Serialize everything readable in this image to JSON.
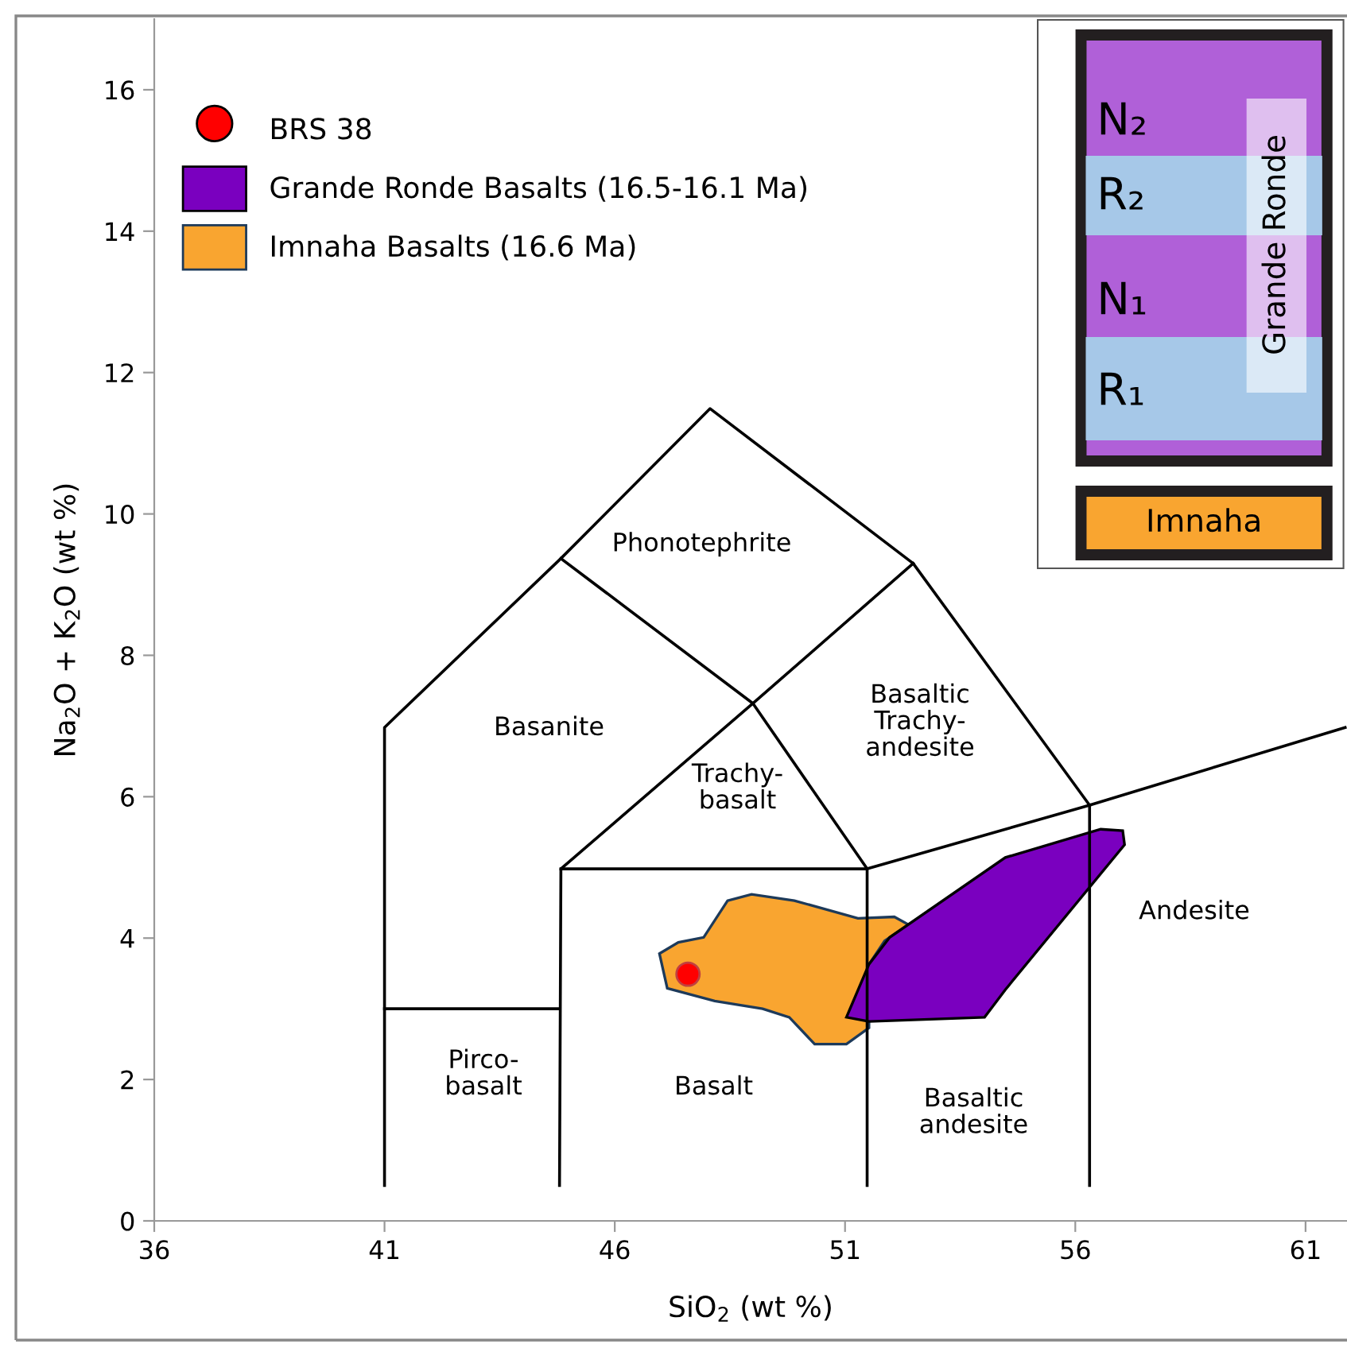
{
  "chart_data": [
    {
      "type": "scatter",
      "xlabel": "SiO$_{2}$ (wt %)",
      "ylabel": "Na$_{2}$O + K$_{2}$O (wt %)",
      "xlim": [
        36,
        61.9
      ],
      "ylim": [
        0,
        17
      ],
      "xticks": [
        36,
        41,
        46,
        51,
        56,
        61
      ],
      "yticks": [
        0,
        2,
        4,
        6,
        8,
        10,
        12,
        14,
        16
      ],
      "grid": false,
      "legend": "top left",
      "series": [
        {
          "name": "Grande Ronde Basalts (16.5-16.1 Ma)",
          "type": "area",
          "color": "#7a00bf",
          "x": [
            51.03,
            51.52,
            51.97,
            54.48,
            56.55,
            57.03,
            57.07,
            54.48,
            54.03,
            51.52
          ],
          "values": [
            2.88,
            3.63,
            4.01,
            5.14,
            5.54,
            5.52,
            5.32,
            3.27,
            2.88,
            2.82
          ]
        },
        {
          "name": "Imnaha Basalts (16.6 Ma)",
          "type": "area",
          "color": "#f9a530",
          "x": [
            46.97,
            47.38,
            47.93,
            48.45,
            48.97,
            49.9,
            51.28,
            52.07,
            52.38,
            51.86,
            51.52,
            51.52,
            51.03,
            50.34,
            49.79,
            49.21,
            48.17,
            47.14
          ],
          "values": [
            3.78,
            3.94,
            4.01,
            4.53,
            4.62,
            4.53,
            4.28,
            4.3,
            4.19,
            3.96,
            3.63,
            2.73,
            2.5,
            2.5,
            2.88,
            3.0,
            3.11,
            3.29
          ]
        },
        {
          "type": "line",
          "color": "#000000",
          "x": [
            41,
            41,
            44.83,
            48.07,
            52.48,
            56.31,
            61.86
          ],
          "values": [
            0.5,
            6.98,
            9.37,
            11.49,
            9.3,
            5.88,
            6.98
          ]
        },
        {
          "type": "line",
          "color": "#000000",
          "x": [
            44.83,
            49.0,
            52.48
          ],
          "values": [
            9.37,
            7.32,
            9.3
          ]
        },
        {
          "type": "line",
          "color": "#000000",
          "x": [
            44.8,
            44.83,
            49.0,
            51.48
          ],
          "values": [
            0.5,
            4.98,
            7.32,
            4.98
          ]
        },
        {
          "type": "line",
          "color": "#000000",
          "x": [
            44.83,
            51.48,
            56.31
          ],
          "values": [
            4.98,
            4.98,
            5.88
          ]
        },
        {
          "type": "line",
          "color": "#000000",
          "x": [
            51.48,
            51.48
          ],
          "values": [
            4.98,
            0.5
          ]
        },
        {
          "type": "line",
          "color": "#000000",
          "x": [
            56.31,
            56.31
          ],
          "values": [
            5.88,
            0.5
          ]
        },
        {
          "type": "line",
          "color": "#000000",
          "x": [
            41,
            44.8
          ],
          "values": [
            3.0,
            3.0
          ]
        },
        {
          "name": "BRS 38",
          "type": "scatter",
          "color": "#ff0000",
          "x": [
            47.59
          ],
          "values": [
            3.49
          ]
        }
      ],
      "annotations": [
        "Phonotephrite",
        "Basanite",
        "Trachy-\nbasalt",
        "Basaltic\nTrachy-\nandesite",
        "Andesite",
        "Pirco-\nbasalt",
        "Basalt",
        "Basaltic\nandesite"
      ]
    },
    {
      "type": "other",
      "annotations": [
        "N₂",
        "R₂",
        "N₁",
        "R₁",
        "Grande Ronde",
        "Imnaha"
      ]
    }
  ]
}
